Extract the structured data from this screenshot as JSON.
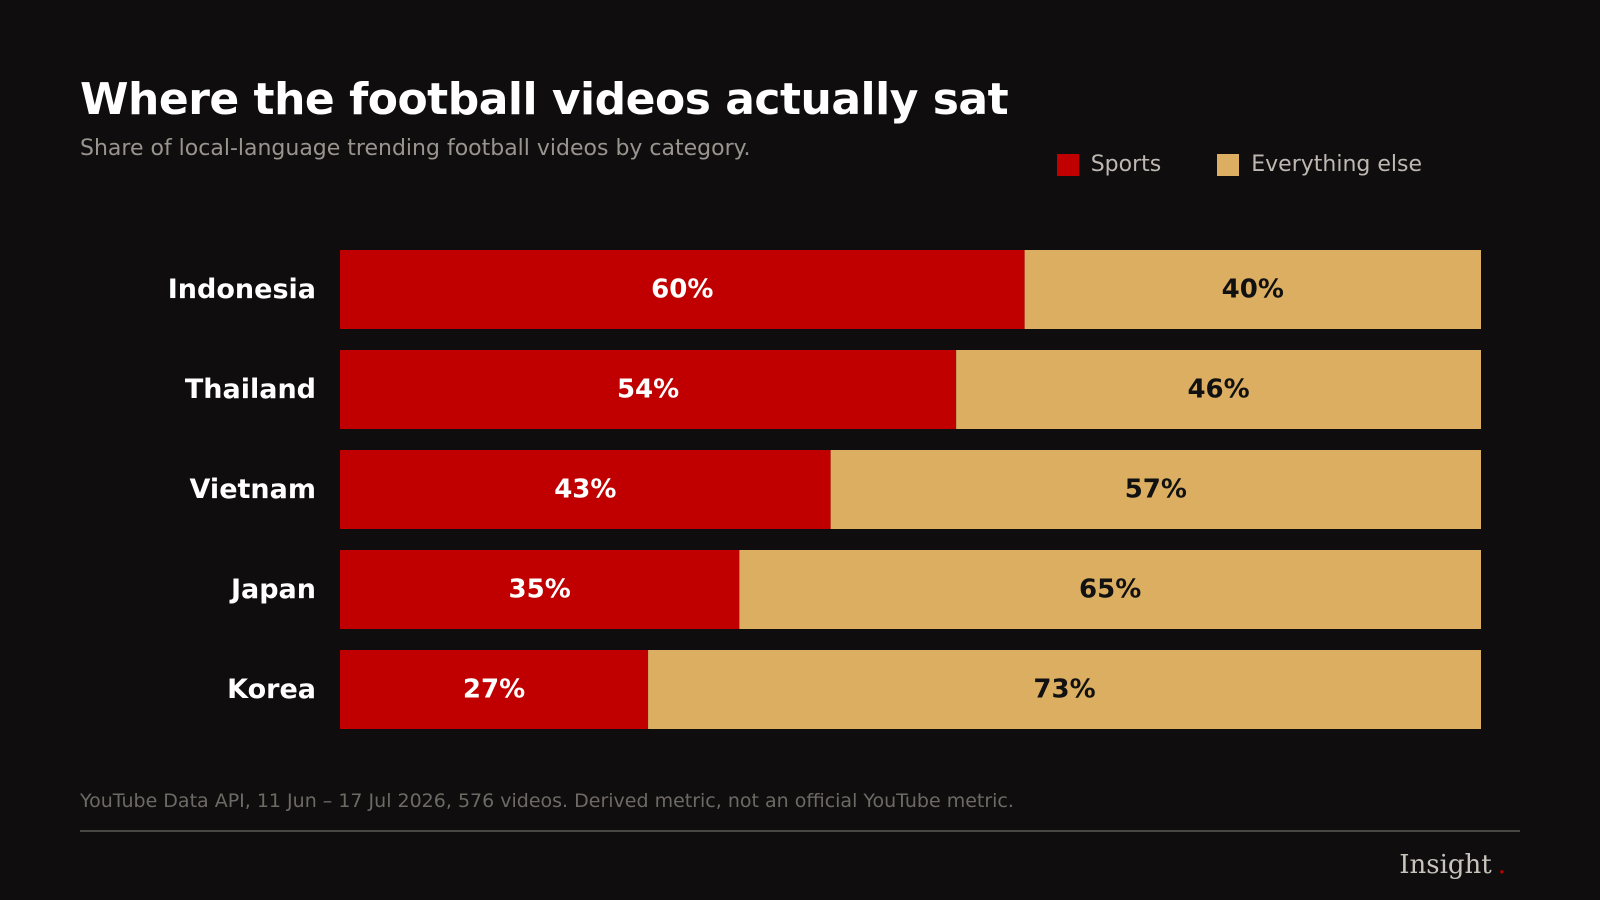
{
  "header": {
    "title": "Where the football videos actually sat",
    "subtitle": "Share of local-language trending football videos by category."
  },
  "legend": {
    "items": [
      {
        "label": "Sports",
        "color": "#c00000"
      },
      {
        "label": "Everything else",
        "color": "#dcae62"
      }
    ]
  },
  "chart_data": {
    "type": "bar",
    "orientation": "horizontal",
    "stacked": true,
    "title": "Where the football videos actually sat",
    "subtitle": "Share of local-language trending football videos by category.",
    "categories": [
      "Indonesia",
      "Thailand",
      "Vietnam",
      "Japan",
      "Korea"
    ],
    "series": [
      {
        "name": "Sports",
        "values": [
          60,
          54,
          43,
          35,
          27
        ],
        "color": "#c00000",
        "label_color": "#ffffff"
      },
      {
        "name": "Everything else",
        "values": [
          40,
          46,
          57,
          65,
          73
        ],
        "color": "#dcae62",
        "label_color": "#111111"
      }
    ],
    "value_suffix": "%",
    "xlim": [
      0,
      100
    ],
    "grid": false,
    "legend_position": "top-right"
  },
  "footer": {
    "source": "YouTube Data API, 11 Jun – 17 Jul 2026, 576 videos. Derived metric, not an official YouTube metric.",
    "brand": "Insight",
    "brand_dot": ".",
    "brand_dot_color": "#c00000"
  }
}
